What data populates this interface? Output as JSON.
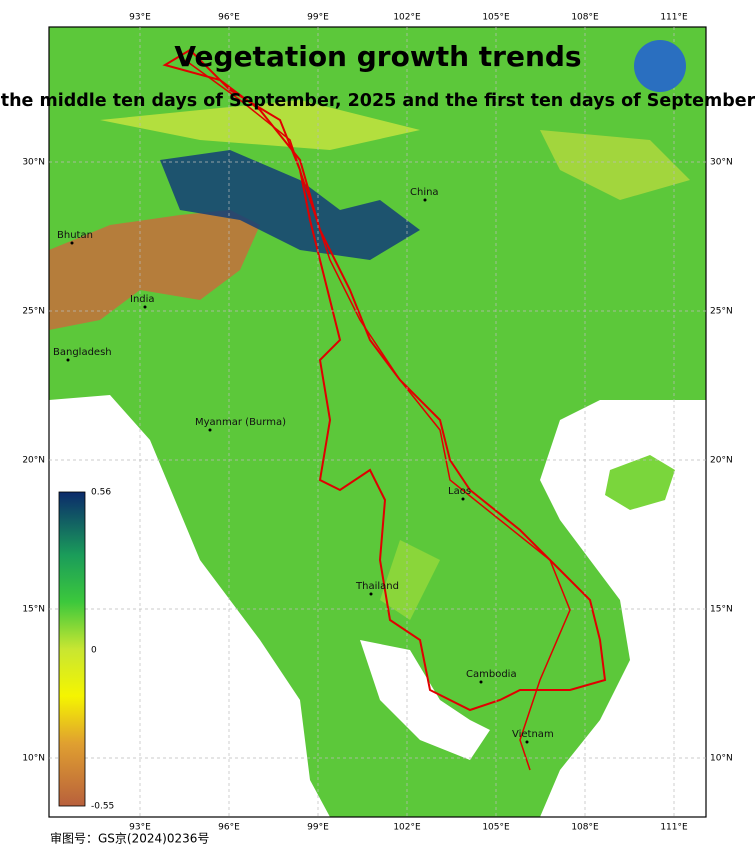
{
  "title": "Vegetation growth trends",
  "subtitle": "the middle ten days of September, 2025 and the first ten days of September",
  "lon_ticks": [
    "93°E",
    "96°E",
    "99°E",
    "102°E",
    "105°E",
    "108°E",
    "111°E"
  ],
  "lat_ticks": [
    "30°N",
    "25°N",
    "20°N",
    "15°N",
    "10°N"
  ],
  "places": [
    "China",
    "Bhutan",
    "India",
    "Bangladesh",
    "Myanmar (Burma)",
    "Laos",
    "Thailand",
    "Cambodia",
    "Vietnam"
  ],
  "colorbar": {
    "max": "0.56",
    "mid": "0",
    "min": "-0.55"
  },
  "footer": "审图号：GS京(2024)0236号"
}
